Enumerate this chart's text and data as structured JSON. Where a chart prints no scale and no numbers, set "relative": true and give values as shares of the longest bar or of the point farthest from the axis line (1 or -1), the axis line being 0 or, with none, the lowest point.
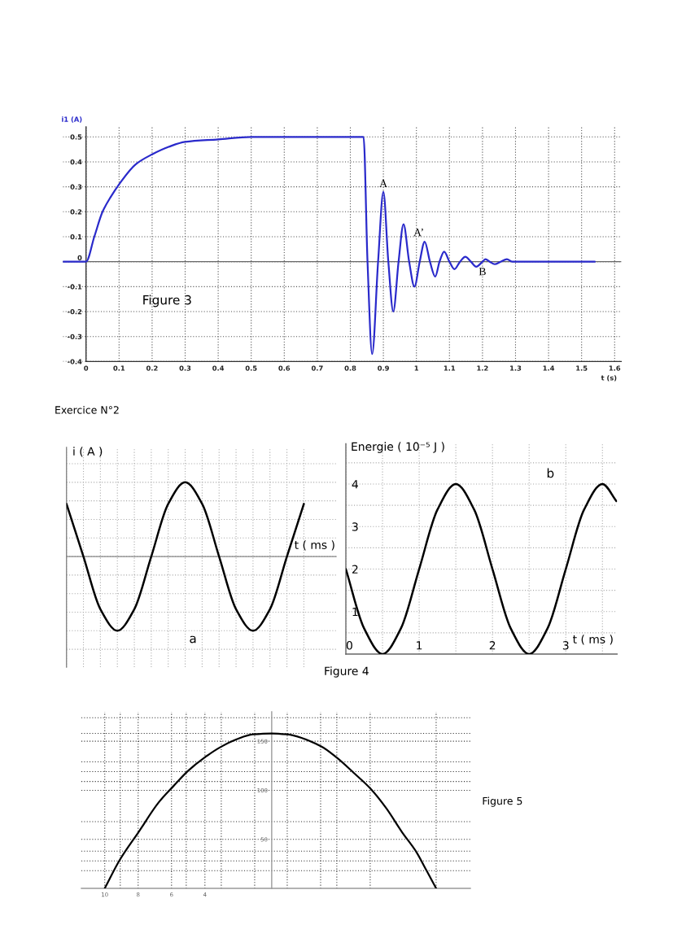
{
  "chart_data": [
    {
      "type": "line",
      "annotations": [
        "Figure 3",
        {
          "text": "A",
          "x": 0.9,
          "y": 0.28
        },
        {
          "text": "A’",
          "x": 0.967,
          "y": 0.1
        },
        {
          "text": "B",
          "x": 1.2,
          "y": 0
        }
      ],
      "xlabel": "t (s)",
      "ylabel": "i1 (A)",
      "x": [
        -0.07,
        0,
        0.025,
        0.05,
        0.075,
        0.1,
        0.15,
        0.2,
        0.25,
        0.3,
        0.4,
        0.5,
        0.84,
        0.852,
        0.866,
        0.884,
        0.9,
        0.915,
        0.93,
        0.946,
        0.961,
        0.978,
        0.994,
        1.01,
        1.025,
        1.041,
        1.057,
        1.07,
        1.084,
        1.1,
        1.115,
        1.132,
        1.148,
        1.165,
        1.181,
        1.2,
        1.209,
        1.222,
        1.237,
        1.255,
        1.274,
        1.29,
        1.54
      ],
      "values": [
        0,
        0,
        0.1,
        0.2,
        0.26,
        0.31,
        0.39,
        0.43,
        0.46,
        0.48,
        0.49,
        0.5,
        0.5,
        0,
        -0.37,
        0,
        0.28,
        0,
        -0.2,
        0,
        0.15,
        0,
        -0.1,
        0,
        0.08,
        0,
        -0.06,
        0,
        0.04,
        0,
        -0.03,
        0,
        0.02,
        0,
        -0.02,
        0,
        0.01,
        0,
        -0.01,
        0,
        0.01,
        0,
        0
      ],
      "color": "#2a2acb",
      "xlim": [
        -0.07,
        1.62
      ],
      "ylim": [
        -0.4,
        0.54
      ],
      "xticks": [
        0,
        0.1,
        0.2,
        0.3,
        0.4,
        0.5,
        0.6,
        0.7,
        0.8,
        0.9,
        1,
        1.1,
        1.2,
        1.3,
        1.4,
        1.5,
        1.6
      ],
      "yticks": [
        -0.4,
        -0.3,
        -0.2,
        -0.1,
        0,
        0.1,
        0.2,
        0.3,
        0.4,
        0.5
      ],
      "grid": true,
      "ref_lines": [
        {
          "axis": "y",
          "value": 0,
          "color": "#666666"
        }
      ]
    },
    {
      "type": "line",
      "title": "Exercice N°2",
      "annotations": [
        "a"
      ],
      "xlabel": "t ( ms )",
      "ylabel": "i ( A )",
      "categories": [
        null,
        null,
        null,
        null,
        null,
        null,
        null,
        null,
        null,
        null,
        null,
        null,
        null,
        null,
        null
      ],
      "values": [
        0.71,
        0,
        -0.71,
        -1,
        -0.71,
        0,
        0.71,
        1,
        0.71,
        0,
        -0.71,
        -1,
        -0.71,
        0,
        0.71
      ],
      "color": "#000000",
      "relative": true,
      "grid": true
    },
    {
      "type": "line",
      "annotations": [
        "b",
        "Figure 4"
      ],
      "xlabel": "t ( ms )",
      "ylabel": "Energie ( 10⁻⁵ J )",
      "x": [
        0,
        0.25,
        0.5,
        0.75,
        1,
        1.25,
        1.5,
        1.75,
        2,
        2.25,
        2.5,
        2.75,
        3,
        3.25,
        3.5,
        3.69
      ],
      "values": [
        2,
        0.6,
        0,
        0.6,
        2,
        3.4,
        4,
        3.4,
        2,
        0.6,
        0,
        0.6,
        2,
        3.4,
        4,
        3.6
      ],
      "color": "#000000",
      "xlim": [
        0,
        3.7
      ],
      "ylim": [
        0,
        4.95
      ],
      "xticks": [
        0,
        {
          "value": 0.5,
          "label": null
        },
        1,
        {
          "value": 1.5,
          "label": null
        },
        2,
        {
          "value": 2.5,
          "label": null
        },
        3,
        {
          "value": 3.5,
          "label": null
        }
      ],
      "yticks": [
        {
          "value": 0.5,
          "label": null
        },
        1,
        {
          "value": 1.5,
          "label": null
        },
        2,
        {
          "value": 2.5,
          "label": null
        },
        3,
        {
          "value": 3.5,
          "label": null
        },
        4,
        {
          "value": 4.5,
          "label": null
        }
      ],
      "grid": true
    },
    {
      "type": "line",
      "annotations": [
        "Figure 5"
      ],
      "x": [
        -10,
        -9.1,
        -7.95,
        -6.8,
        -5.9,
        -5,
        -4.05,
        -3.07,
        -2.1,
        -1.12,
        0,
        0.91,
        2.94,
        3.92,
        4.9,
        5.9,
        6.85,
        7.82,
        8.63,
        9.28,
        9.85
      ],
      "values": [
        0,
        29,
        58,
        87,
        104,
        120,
        133,
        144,
        152,
        157,
        158,
        157,
        145,
        133,
        118,
        102,
        82,
        57,
        38,
        18,
        0
      ],
      "color": "#000000",
      "xlim": [
        -11.4,
        11.9
      ],
      "ylim": [
        0,
        180
      ],
      "xticks": [
        {
          "value": -10,
          "label": "10"
        },
        {
          "value": -9.07,
          "label": null
        },
        {
          "value": -8,
          "label": "8"
        },
        {
          "value": -6,
          "label": "6"
        },
        {
          "value": -5.12,
          "label": null
        },
        {
          "value": -4,
          "label": "4"
        },
        {
          "value": -3.02,
          "label": null
        },
        {
          "value": -1.02,
          "label": null
        },
        {
          "value": 0.93,
          "label": null
        },
        {
          "value": 2.93,
          "label": null
        },
        {
          "value": 3.9,
          "label": null
        },
        {
          "value": 5.9,
          "label": null
        },
        {
          "value": 9.85,
          "label": null
        }
      ],
      "yticks": [
        {
          "value": 18,
          "label": null
        },
        {
          "value": 28,
          "label": null
        },
        {
          "value": 38,
          "label": null
        },
        50,
        {
          "value": 68,
          "label": null
        },
        100,
        {
          "value": 109,
          "label": null
        },
        {
          "value": 119,
          "label": null
        },
        {
          "value": 129,
          "label": null
        },
        150,
        {
          "value": 158,
          "label": null
        },
        {
          "value": 174,
          "label": null
        }
      ],
      "grid": true
    }
  ]
}
